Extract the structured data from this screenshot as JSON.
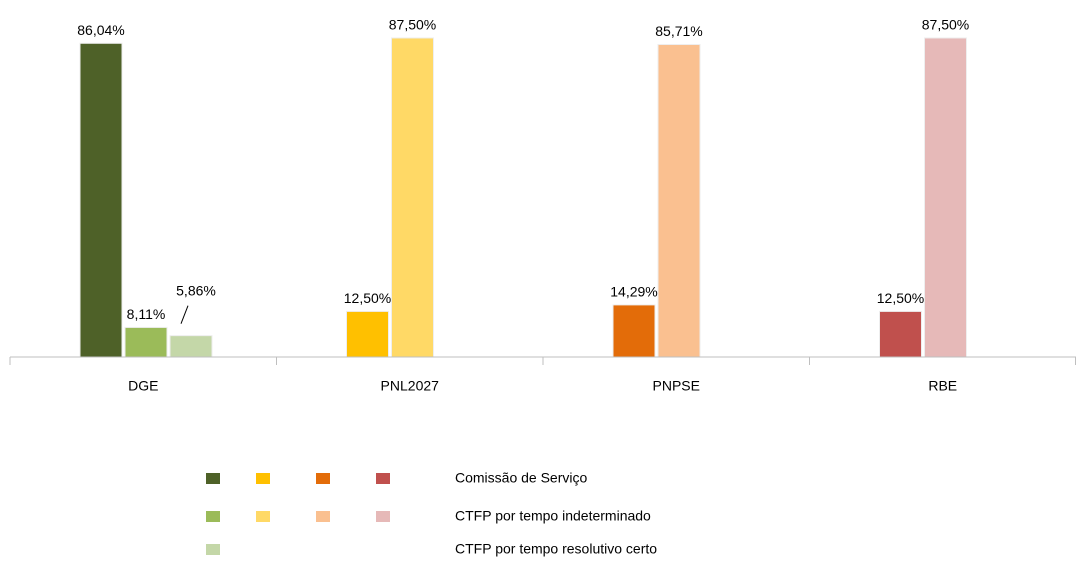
{
  "chart_data": {
    "type": "bar",
    "categories": [
      "DGE",
      "PNL2027",
      "PNPSE",
      "RBE"
    ],
    "series": [
      {
        "name": "Comissão de Serviço",
        "colors": [
          "#4e6128",
          "#ffc000",
          "#e36c09",
          "#c0504d"
        ],
        "values": [
          86.04,
          12.5,
          14.29,
          12.5
        ],
        "value_labels": [
          "86,04%",
          "12,50%",
          "14,29%",
          "12,50%"
        ]
      },
      {
        "name": "CTFP por tempo indeterminado",
        "colors": [
          "#9bbb59",
          "#ffd966",
          "#fac090",
          "#e6b9b8"
        ],
        "values": [
          8.11,
          87.5,
          85.71,
          87.5
        ],
        "value_labels": [
          "8,11%",
          "87,50%",
          "85,71%",
          "87,50%"
        ]
      },
      {
        "name": "CTFP por tempo resolutivo certo",
        "colors": [
          "#c4d7a8",
          null,
          null,
          null
        ],
        "values": [
          5.86,
          null,
          null,
          null
        ],
        "value_labels": [
          "5,86%",
          null,
          null,
          null
        ]
      }
    ],
    "ylim": [
      0,
      100
    ]
  }
}
